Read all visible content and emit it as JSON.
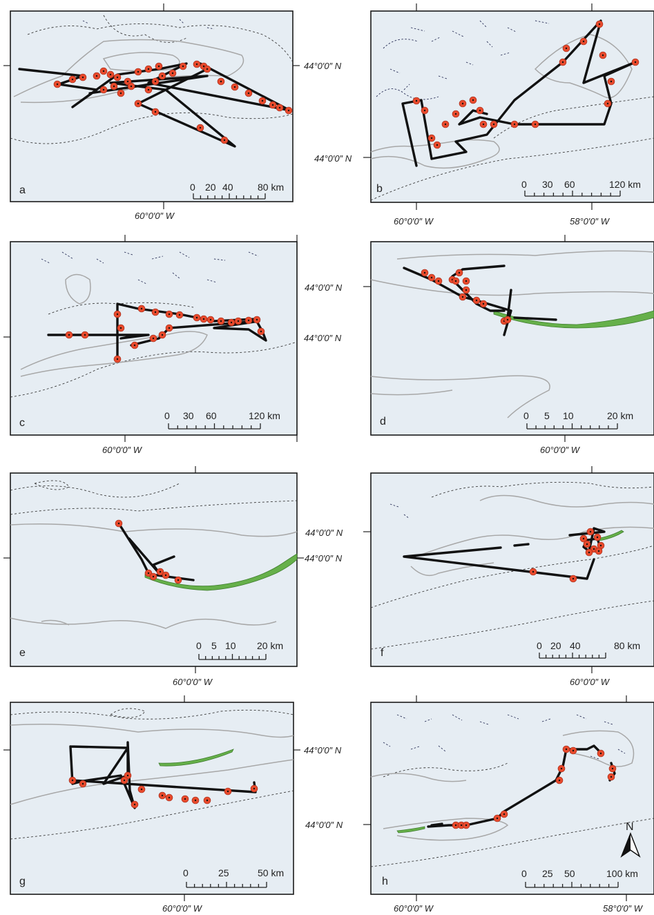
{
  "panels": [
    {
      "id": "a",
      "letter": "a",
      "lat_label": "44°0′0″ N",
      "lon_labels": [
        "60°0′0″ W"
      ],
      "scale": {
        "ticks": [
          "0",
          "20",
          "40",
          "80 km"
        ]
      }
    },
    {
      "id": "b",
      "letter": "b",
      "lat_label": "44°0′0″ N",
      "lon_labels": [
        "60°0′0″ W",
        "58°0′0″ W"
      ],
      "scale": {
        "ticks": [
          "0",
          "30",
          "60",
          "120 km"
        ]
      }
    },
    {
      "id": "c",
      "letter": "c",
      "lat_label": "44°0′0″ N",
      "lon_labels": [
        "60°0′0″ W"
      ],
      "scale": {
        "ticks": [
          "0",
          "30",
          "60",
          "120 km"
        ]
      }
    },
    {
      "id": "d",
      "letter": "d",
      "lat_label": "44°0′0″ N",
      "lon_labels": [
        "60°0′0″ W"
      ],
      "scale": {
        "ticks": [
          "0",
          "5",
          "10",
          "20 km"
        ]
      }
    },
    {
      "id": "e",
      "letter": "e",
      "lat_label": "44°0′0″ N",
      "lon_labels": [
        "60°0′0″ W"
      ],
      "scale": {
        "ticks": [
          "0",
          "5",
          "10",
          "20 km"
        ]
      }
    },
    {
      "id": "f",
      "letter": "f",
      "lat_label": "44°0′0″ N",
      "lon_labels": [
        "60°0′0″ W"
      ],
      "scale": {
        "ticks": [
          "0",
          "20",
          "40",
          "80 km"
        ]
      }
    },
    {
      "id": "g",
      "letter": "g",
      "lat_label": "44°0′0″ N",
      "lon_labels": [
        "60°0′0″ W"
      ],
      "scale": {
        "ticks": [
          "0",
          "25",
          "50 km"
        ]
      }
    },
    {
      "id": "h",
      "letter": "h",
      "lat_label": "44°0′0″ N",
      "lon_labels": [
        "60°0′0″ W",
        "58°0′0″ W"
      ],
      "scale": {
        "ticks": [
          "0",
          "25",
          "50",
          "100 km"
        ]
      }
    }
  ],
  "north_arrow": {
    "label": "N"
  },
  "colors": {
    "water": "#e6edf3",
    "track": "#111111",
    "location_dot": "#e84a2c",
    "sable_bank": "#66b04a",
    "coastline": "#a7a7a7"
  }
}
